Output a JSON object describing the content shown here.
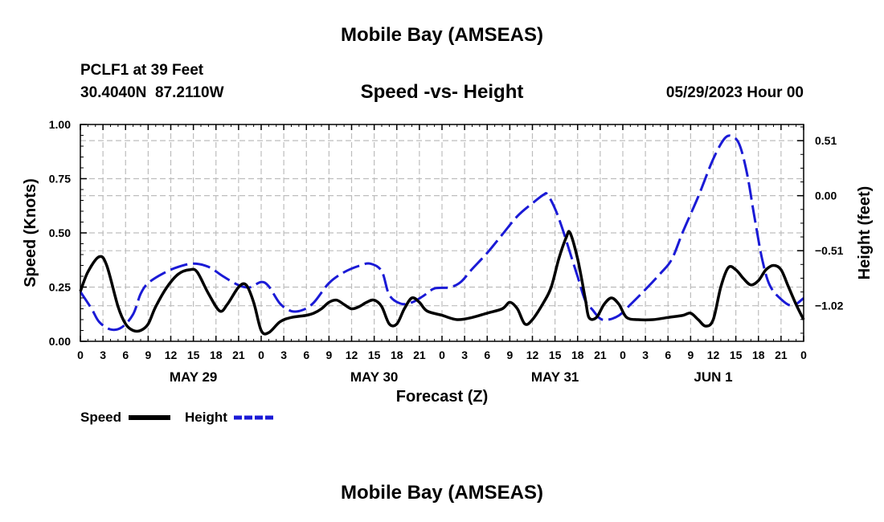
{
  "page": {
    "title_top": "Mobile Bay (AMSEAS)",
    "station_line": "PCLF1 at 39 Feet",
    "coords_line": "30.4040N  87.2110W",
    "date_line": "05/29/2023 Hour 00",
    "title_bottom": "Mobile Bay (AMSEAS)"
  },
  "chart_data": {
    "type": "line",
    "title": "Speed -vs- Height",
    "xlabel": "Forecast (Z)",
    "ylabel_left": "Speed (Knots)",
    "ylabel_right": "Height (feet)",
    "x_range_hours": [
      0,
      96
    ],
    "ylim_left": [
      0,
      1.0
    ],
    "ylim_right": [
      -1.35,
      0.66
    ],
    "left_ticks": [
      {
        "value": 0.0,
        "label": "0.00"
      },
      {
        "value": 0.25,
        "label": "0.25"
      },
      {
        "value": 0.5,
        "label": "0.50"
      },
      {
        "value": 0.75,
        "label": "0.75"
      },
      {
        "value": 1.0,
        "label": "1.00"
      }
    ],
    "right_ticks": [
      {
        "value": 0.51,
        "label": "0.51"
      },
      {
        "value": 0.0,
        "label": "0.00"
      },
      {
        "value": -0.51,
        "label": "−0.51"
      },
      {
        "value": -1.02,
        "label": "−1.02"
      }
    ],
    "x_tick_hours": [
      0,
      3,
      6,
      9,
      12,
      15,
      18,
      21,
      24,
      27,
      30,
      33,
      36,
      39,
      42,
      45,
      48,
      51,
      54,
      57,
      60,
      63,
      66,
      69,
      72,
      75,
      78,
      81,
      84,
      87,
      90,
      93,
      96
    ],
    "x_tick_labels": [
      "0",
      "3",
      "6",
      "9",
      "12",
      "15",
      "18",
      "21",
      "0",
      "3",
      "6",
      "9",
      "12",
      "15",
      "18",
      "21",
      "0",
      "3",
      "6",
      "9",
      "12",
      "15",
      "18",
      "21",
      "0",
      "3",
      "6",
      "9",
      "12",
      "15",
      "18",
      "21",
      "0"
    ],
    "day_labels": [
      {
        "hour": 15,
        "label": "MAY 29"
      },
      {
        "hour": 39,
        "label": "MAY 30"
      },
      {
        "hour": 63,
        "label": "MAY 31"
      },
      {
        "hour": 84,
        "label": "JUN 1"
      }
    ],
    "series": [
      {
        "name": "Speed",
        "axis": "left",
        "color": "#000000",
        "style": "solid",
        "points": [
          [
            0,
            0.23
          ],
          [
            1,
            0.32
          ],
          [
            2.5,
            0.39
          ],
          [
            3.5,
            0.35
          ],
          [
            5,
            0.16
          ],
          [
            6,
            0.08
          ],
          [
            7,
            0.05
          ],
          [
            8,
            0.05
          ],
          [
            9,
            0.08
          ],
          [
            10,
            0.16
          ],
          [
            11.5,
            0.25
          ],
          [
            13,
            0.31
          ],
          [
            14.5,
            0.33
          ],
          [
            15.5,
            0.32
          ],
          [
            17,
            0.22
          ],
          [
            18.5,
            0.14
          ],
          [
            19.5,
            0.17
          ],
          [
            21,
            0.25
          ],
          [
            22,
            0.26
          ],
          [
            23,
            0.18
          ],
          [
            24,
            0.05
          ],
          [
            25,
            0.04
          ],
          [
            26.5,
            0.09
          ],
          [
            28,
            0.11
          ],
          [
            30,
            0.12
          ],
          [
            31,
            0.13
          ],
          [
            32,
            0.15
          ],
          [
            33,
            0.18
          ],
          [
            34,
            0.19
          ],
          [
            35,
            0.17
          ],
          [
            36,
            0.15
          ],
          [
            37,
            0.16
          ],
          [
            38,
            0.18
          ],
          [
            39,
            0.19
          ],
          [
            40,
            0.16
          ],
          [
            41,
            0.08
          ],
          [
            42,
            0.08
          ],
          [
            43,
            0.15
          ],
          [
            44,
            0.2
          ],
          [
            45,
            0.18
          ],
          [
            46,
            0.14
          ],
          [
            48,
            0.12
          ],
          [
            50,
            0.1
          ],
          [
            52,
            0.11
          ],
          [
            54,
            0.13
          ],
          [
            56,
            0.15
          ],
          [
            57,
            0.18
          ],
          [
            58,
            0.15
          ],
          [
            59,
            0.08
          ],
          [
            60,
            0.1
          ],
          [
            61.5,
            0.18
          ],
          [
            62.5,
            0.25
          ],
          [
            63.5,
            0.38
          ],
          [
            64.5,
            0.48
          ],
          [
            65,
            0.5
          ],
          [
            66,
            0.38
          ],
          [
            67,
            0.2
          ],
          [
            67.5,
            0.11
          ],
          [
            68.5,
            0.11
          ],
          [
            69.5,
            0.17
          ],
          [
            70.5,
            0.2
          ],
          [
            71.5,
            0.17
          ],
          [
            72.5,
            0.11
          ],
          [
            74,
            0.1
          ],
          [
            76,
            0.1
          ],
          [
            78,
            0.11
          ],
          [
            80,
            0.12
          ],
          [
            81,
            0.13
          ],
          [
            82,
            0.1
          ],
          [
            83,
            0.07
          ],
          [
            84,
            0.1
          ],
          [
            85,
            0.25
          ],
          [
            86,
            0.34
          ],
          [
            87,
            0.33
          ],
          [
            88,
            0.29
          ],
          [
            89,
            0.26
          ],
          [
            90,
            0.28
          ],
          [
            91,
            0.33
          ],
          [
            92,
            0.35
          ],
          [
            93,
            0.33
          ],
          [
            94,
            0.25
          ],
          [
            95,
            0.17
          ],
          [
            96,
            0.1
          ]
        ]
      },
      {
        "name": "Height",
        "axis": "right",
        "color": "#1a1ad6",
        "style": "dashed",
        "points": [
          [
            0,
            -0.89
          ],
          [
            1.5,
            -1.05
          ],
          [
            2.5,
            -1.17
          ],
          [
            4,
            -1.24
          ],
          [
            5.5,
            -1.22
          ],
          [
            7,
            -1.1
          ],
          [
            8,
            -0.91
          ],
          [
            9,
            -0.81
          ],
          [
            11,
            -0.72
          ],
          [
            13,
            -0.66
          ],
          [
            15,
            -0.63
          ],
          [
            17,
            -0.66
          ],
          [
            19,
            -0.75
          ],
          [
            21,
            -0.83
          ],
          [
            22.5,
            -0.85
          ],
          [
            24,
            -0.8
          ],
          [
            25,
            -0.84
          ],
          [
            26.5,
            -1.0
          ],
          [
            28,
            -1.07
          ],
          [
            29.5,
            -1.06
          ],
          [
            31,
            -0.99
          ],
          [
            33,
            -0.81
          ],
          [
            35,
            -0.71
          ],
          [
            37,
            -0.65
          ],
          [
            38.5,
            -0.63
          ],
          [
            40,
            -0.7
          ],
          [
            41,
            -0.92
          ],
          [
            42.5,
            -1.0
          ],
          [
            44,
            -0.99
          ],
          [
            45.5,
            -0.93
          ],
          [
            47,
            -0.86
          ],
          [
            49,
            -0.85
          ],
          [
            50.5,
            -0.8
          ],
          [
            52,
            -0.68
          ],
          [
            54,
            -0.53
          ],
          [
            56,
            -0.36
          ],
          [
            58,
            -0.19
          ],
          [
            60,
            -0.07
          ],
          [
            61.5,
            0.01
          ],
          [
            62,
            0.01
          ],
          [
            63,
            -0.12
          ],
          [
            64,
            -0.31
          ],
          [
            65,
            -0.53
          ],
          [
            66,
            -0.75
          ],
          [
            67,
            -0.97
          ],
          [
            68,
            -1.06
          ],
          [
            69,
            -1.14
          ],
          [
            70,
            -1.15
          ],
          [
            71.5,
            -1.11
          ],
          [
            73,
            -1.01
          ],
          [
            75,
            -0.87
          ],
          [
            77,
            -0.72
          ],
          [
            78.5,
            -0.59
          ],
          [
            80,
            -0.33
          ],
          [
            82,
            -0.01
          ],
          [
            84,
            0.34
          ],
          [
            85.5,
            0.53
          ],
          [
            86.5,
            0.55
          ],
          [
            87.5,
            0.47
          ],
          [
            88.5,
            0.2
          ],
          [
            89.5,
            -0.21
          ],
          [
            90.5,
            -0.59
          ],
          [
            91.5,
            -0.83
          ],
          [
            93,
            -0.96
          ],
          [
            94.5,
            -1.02
          ],
          [
            96,
            -0.95
          ]
        ]
      }
    ],
    "legend": [
      {
        "label": "Speed",
        "color": "#000000",
        "style": "solid"
      },
      {
        "label": "Height",
        "color": "#1a1ad6",
        "style": "dashed"
      }
    ],
    "grid": true
  }
}
